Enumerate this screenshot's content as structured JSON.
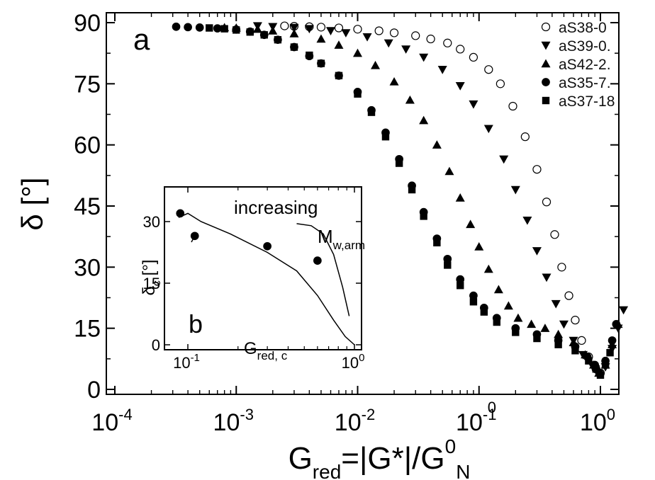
{
  "chart_data": [
    {
      "type": "scatter",
      "panel_label": "a",
      "x_scale": "log",
      "xlim": [
        0.0001,
        2.5
      ],
      "ylim": [
        0,
        90
      ],
      "x_ticks": [
        {
          "value": 0.0001,
          "base": "10",
          "exp": "-4"
        },
        {
          "value": 0.001,
          "base": "10",
          "exp": "-3"
        },
        {
          "value": 0.01,
          "base": "10",
          "exp": "-2"
        },
        {
          "value": 0.1,
          "base": "10",
          "exp": "-1"
        },
        {
          "value": 1,
          "base": "10",
          "exp": "0"
        }
      ],
      "x_tick_label_extra": {
        "text": "0",
        "near_value": 0.1
      },
      "y_ticks": [
        "0",
        "15",
        "30",
        "45",
        "60",
        "75",
        "90"
      ],
      "xlabel": {
        "main": "G",
        "sub1": "red",
        "mid": "=|G*|/G",
        "sup": "0",
        "sub2": "N"
      },
      "ylabel": {
        "text": "δ [°]"
      },
      "legend_position": "top-right",
      "series": [
        {
          "name": "aS38-0",
          "marker": "open-circle",
          "points": [
            [
              0.0025,
              89.2
            ],
            [
              0.003,
              89.1
            ],
            [
              0.004,
              89
            ],
            [
              0.005,
              88.9
            ],
            [
              0.007,
              88.7
            ],
            [
              0.01,
              88.4
            ],
            [
              0.015,
              88
            ],
            [
              0.02,
              87.5
            ],
            [
              0.03,
              86.8
            ],
            [
              0.04,
              86
            ],
            [
              0.055,
              85
            ],
            [
              0.07,
              83.5
            ],
            [
              0.09,
              81.5
            ],
            [
              0.12,
              78.5
            ],
            [
              0.15,
              75
            ],
            [
              0.19,
              69.5
            ],
            [
              0.24,
              62
            ],
            [
              0.3,
              54
            ],
            [
              0.36,
              46
            ],
            [
              0.42,
              38
            ],
            [
              0.48,
              30
            ],
            [
              0.55,
              23
            ],
            [
              0.62,
              17
            ],
            [
              0.7,
              12
            ],
            [
              0.8,
              8
            ],
            [
              0.92,
              5
            ],
            [
              1.0,
              4
            ]
          ]
        },
        {
          "name": "aS39-0.",
          "marker": "down-triangle",
          "points": [
            [
              0.0015,
              89.2
            ],
            [
              0.002,
              89
            ],
            [
              0.003,
              88.8
            ],
            [
              0.004,
              88.5
            ],
            [
              0.006,
              88
            ],
            [
              0.008,
              87.5
            ],
            [
              0.012,
              86.5
            ],
            [
              0.018,
              85
            ],
            [
              0.025,
              83.5
            ],
            [
              0.035,
              81.5
            ],
            [
              0.05,
              78.5
            ],
            [
              0.07,
              74.5
            ],
            [
              0.09,
              70
            ],
            [
              0.12,
              64
            ],
            [
              0.16,
              56.5
            ],
            [
              0.2,
              49
            ],
            [
              0.25,
              41.5
            ],
            [
              0.3,
              34
            ],
            [
              0.36,
              27.5
            ],
            [
              0.43,
              21
            ],
            [
              0.5,
              16
            ],
            [
              0.6,
              12
            ],
            [
              0.72,
              8.5
            ],
            [
              0.85,
              6
            ],
            [
              0.97,
              4
            ],
            [
              1.1,
              5.5
            ],
            [
              1.25,
              10
            ],
            [
              1.4,
              15
            ],
            [
              1.55,
              19.5
            ]
          ]
        },
        {
          "name": "aS42-2.",
          "marker": "up-triangle",
          "points": [
            [
              0.0008,
              88.8
            ],
            [
              0.001,
              88.7
            ],
            [
              0.0015,
              88.4
            ],
            [
              0.002,
              88
            ],
            [
              0.003,
              87.3
            ],
            [
              0.005,
              86
            ],
            [
              0.007,
              84.5
            ],
            [
              0.01,
              82.5
            ],
            [
              0.014,
              79.5
            ],
            [
              0.02,
              75.5
            ],
            [
              0.027,
              71
            ],
            [
              0.035,
              66
            ],
            [
              0.045,
              60
            ],
            [
              0.057,
              53.5
            ],
            [
              0.07,
              47
            ],
            [
              0.085,
              40.5
            ],
            [
              0.1,
              35
            ],
            [
              0.12,
              29.5
            ],
            [
              0.145,
              24.5
            ],
            [
              0.175,
              20.5
            ],
            [
              0.21,
              17.5
            ],
            [
              0.27,
              16
            ],
            [
              0.35,
              15
            ],
            [
              0.45,
              13.5
            ],
            [
              0.6,
              11.5
            ],
            [
              0.75,
              8.5
            ],
            [
              0.88,
              6
            ],
            [
              0.97,
              4
            ],
            [
              1.1,
              6
            ],
            [
              1.25,
              11
            ],
            [
              1.4,
              16
            ]
          ]
        },
        {
          "name": "aS35-7.",
          "marker": "filled-circle",
          "points": [
            [
              0.00032,
              89
            ],
            [
              0.0004,
              88.9
            ],
            [
              0.0005,
              88.8
            ],
            [
              0.0007,
              88.6
            ],
            [
              0.001,
              88.3
            ],
            [
              0.0013,
              87.8
            ],
            [
              0.0017,
              87
            ],
            [
              0.0022,
              85.8
            ],
            [
              0.003,
              84
            ],
            [
              0.004,
              81.8
            ],
            [
              0.005,
              80
            ],
            [
              0.007,
              77
            ],
            [
              0.01,
              73
            ],
            [
              0.013,
              68.5
            ],
            [
              0.017,
              63
            ],
            [
              0.022,
              56.5
            ],
            [
              0.028,
              50
            ],
            [
              0.035,
              43.5
            ],
            [
              0.045,
              37
            ],
            [
              0.055,
              32
            ],
            [
              0.07,
              27
            ],
            [
              0.09,
              23
            ],
            [
              0.11,
              20
            ],
            [
              0.14,
              17.5
            ],
            [
              0.2,
              15
            ],
            [
              0.3,
              13.5
            ],
            [
              0.45,
              12
            ],
            [
              0.62,
              10.5
            ],
            [
              0.78,
              8
            ],
            [
              0.9,
              6
            ],
            [
              0.98,
              4
            ],
            [
              1.1,
              7
            ],
            [
              1.25,
              12
            ],
            [
              1.35,
              16
            ]
          ]
        },
        {
          "name": "aS37-18",
          "marker": "filled-square",
          "points": [
            [
              0.0006,
              88.7
            ],
            [
              0.0008,
              88.5
            ],
            [
              0.001,
              88.2
            ],
            [
              0.0013,
              87.7
            ],
            [
              0.0017,
              87
            ],
            [
              0.0022,
              85.8
            ],
            [
              0.003,
              84
            ],
            [
              0.004,
              82
            ],
            [
              0.005,
              80
            ],
            [
              0.007,
              77
            ],
            [
              0.01,
              72.5
            ],
            [
              0.013,
              68
            ],
            [
              0.017,
              62
            ],
            [
              0.022,
              55.5
            ],
            [
              0.028,
              49
            ],
            [
              0.035,
              42.5
            ],
            [
              0.045,
              36
            ],
            [
              0.055,
              30.5
            ],
            [
              0.07,
              25.5
            ],
            [
              0.09,
              21.5
            ],
            [
              0.11,
              19
            ],
            [
              0.14,
              16.5
            ],
            [
              0.2,
              14
            ],
            [
              0.3,
              12.5
            ],
            [
              0.45,
              11
            ],
            [
              0.62,
              9.5
            ],
            [
              0.8,
              7
            ],
            [
              0.92,
              5
            ],
            [
              1.0,
              3.5
            ],
            [
              1.1,
              6
            ],
            [
              1.2,
              9
            ]
          ]
        }
      ]
    },
    {
      "type": "scatter",
      "panel_label": "b",
      "x_scale": "log",
      "xlim": [
        0.07,
        1.0
      ],
      "ylim": [
        0,
        37
      ],
      "x_ticks": [
        {
          "value": 0.1,
          "base": "10",
          "exp": "-1"
        },
        {
          "value": 1,
          "base": "10",
          "exp": "0"
        }
      ],
      "y_ticks": [
        "0",
        "15",
        "30"
      ],
      "xlabel": {
        "main": "G",
        "sub": "red, c"
      },
      "ylabel": {
        "main": "δ",
        "sub": "c",
        "rest": " [°]"
      },
      "annotation": {
        "line1": "increasing",
        "main": "M",
        "sub": "w,arm"
      },
      "points": [
        [
          0.09,
          32
        ],
        [
          0.11,
          26.5
        ],
        [
          0.3,
          24
        ],
        [
          0.6,
          20.5
        ]
      ],
      "curves": [
        [
          [
            0.088,
            31
          ],
          [
            0.1,
            32
          ],
          [
            0.12,
            30
          ],
          [
            0.18,
            27
          ],
          [
            0.3,
            22.5
          ],
          [
            0.45,
            18
          ],
          [
            0.6,
            12
          ],
          [
            0.75,
            6
          ],
          [
            0.88,
            2
          ],
          [
            1.0,
            0
          ]
        ],
        [
          [
            0.11,
            26.5
          ],
          [
            0.105,
            25
          ]
        ],
        [
          [
            0.45,
            29.5
          ],
          [
            0.55,
            29
          ],
          [
            0.65,
            27
          ],
          [
            0.75,
            22
          ],
          [
            0.85,
            14
          ],
          [
            0.93,
            7
          ]
        ]
      ]
    }
  ]
}
